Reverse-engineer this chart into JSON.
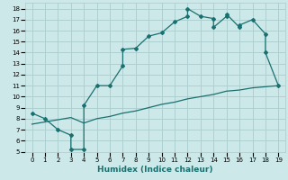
{
  "title": "",
  "xlabel": "Humidex (Indice chaleur)",
  "bg_color": "#cce8e8",
  "grid_color": "#aacccc",
  "line_color": "#1a7070",
  "x_line1": [
    0,
    1,
    2,
    3,
    3,
    4,
    4,
    5,
    6,
    7,
    7,
    8,
    9,
    10,
    11,
    12,
    12,
    13,
    14,
    14,
    15,
    15,
    16,
    16,
    17,
    18,
    18,
    19
  ],
  "y_line1": [
    8.5,
    8.0,
    7.0,
    6.5,
    5.2,
    5.2,
    9.2,
    11.0,
    11.0,
    12.8,
    14.3,
    14.4,
    15.5,
    15.8,
    16.8,
    17.3,
    18.0,
    17.3,
    17.1,
    16.3,
    17.3,
    17.5,
    16.3,
    16.5,
    17.0,
    15.7,
    14.0,
    11.0
  ],
  "x_line2": [
    0,
    1,
    2,
    3,
    4,
    5,
    6,
    7,
    8,
    9,
    10,
    11,
    12,
    13,
    14,
    15,
    16,
    17,
    18,
    19
  ],
  "y_line2": [
    7.5,
    7.7,
    7.9,
    8.1,
    7.6,
    8.0,
    8.2,
    8.5,
    8.7,
    9.0,
    9.3,
    9.5,
    9.8,
    10.0,
    10.2,
    10.5,
    10.6,
    10.8,
    10.9,
    11.0
  ],
  "xlim": [
    -0.5,
    19.5
  ],
  "ylim": [
    5,
    18.5
  ],
  "xticks": [
    0,
    1,
    2,
    3,
    4,
    5,
    6,
    7,
    8,
    9,
    10,
    11,
    12,
    13,
    14,
    15,
    16,
    17,
    18,
    19
  ],
  "yticks": [
    5,
    6,
    7,
    8,
    9,
    10,
    11,
    12,
    13,
    14,
    15,
    16,
    17,
    18
  ]
}
